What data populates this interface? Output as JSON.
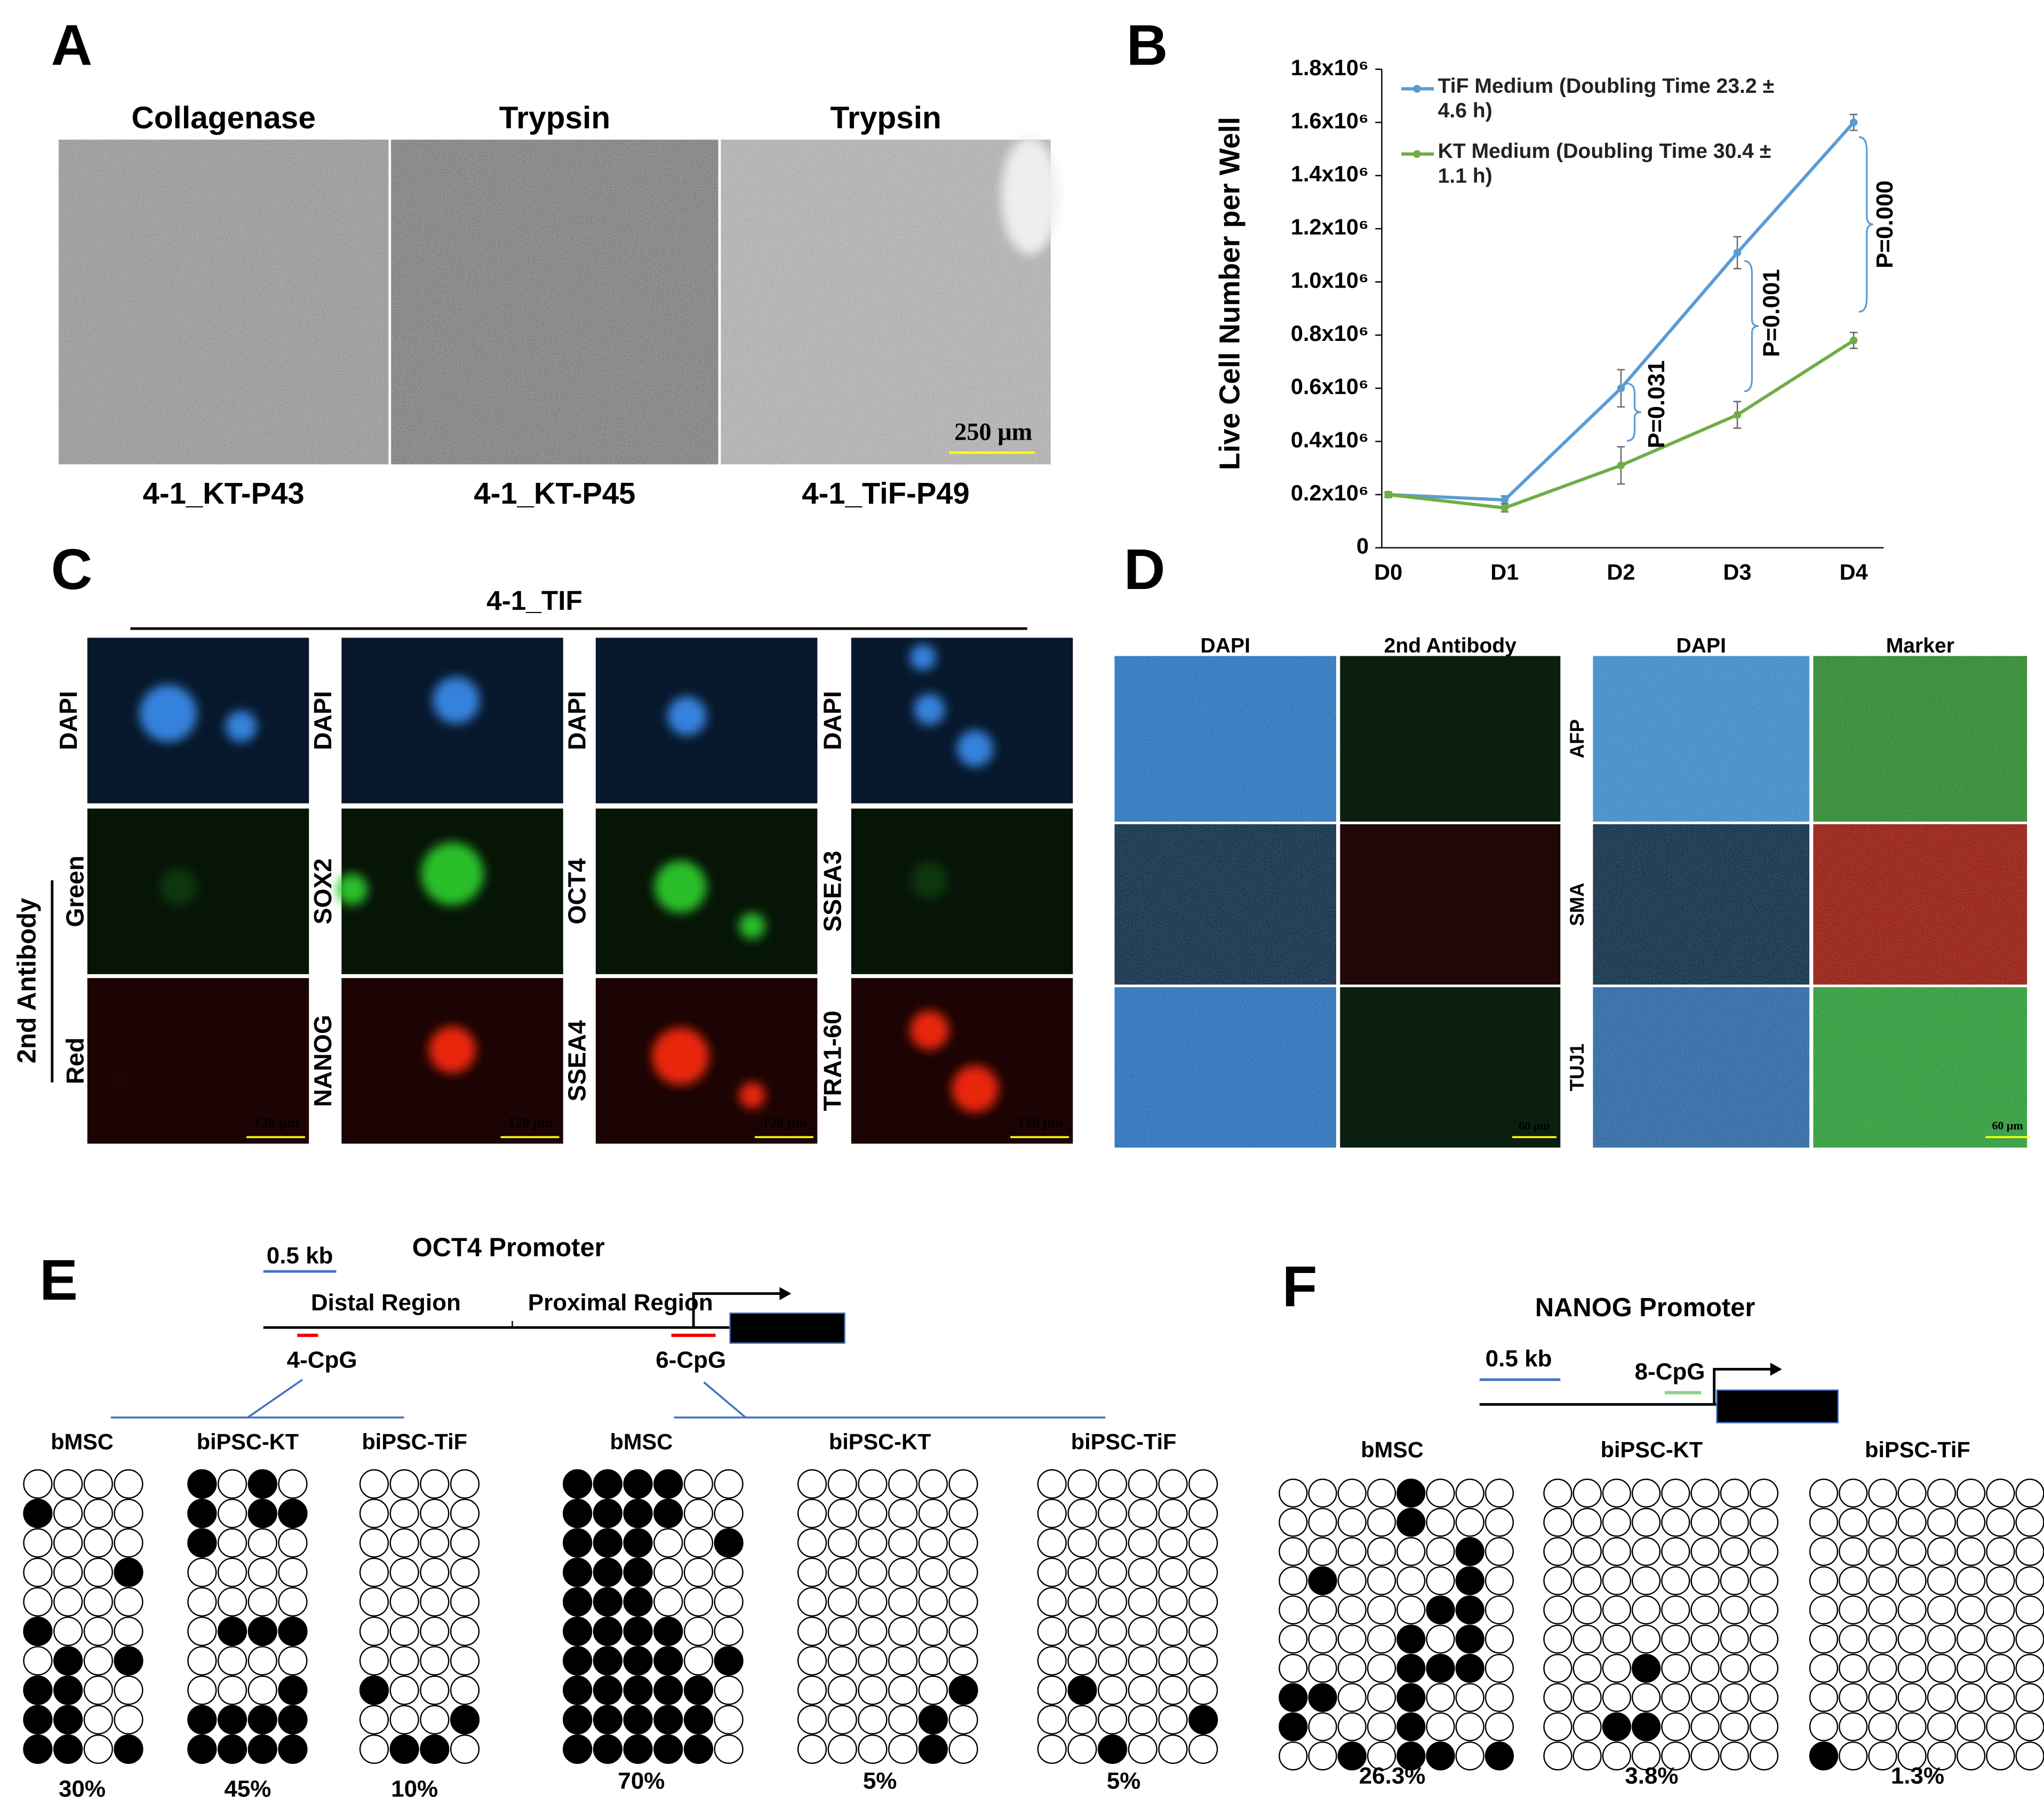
{
  "figure": {
    "panel_letters": [
      "A",
      "B",
      "C",
      "D",
      "E",
      "F"
    ],
    "A": {
      "titles": [
        "Collagenase",
        "Trypsin",
        "Trypsin"
      ],
      "captions": [
        "4-1_KT-P43",
        "4-1_KT-P45",
        "4-1_TiF-P49"
      ],
      "scale_bar": "250 μm"
    },
    "C": {
      "header": "4-1_TIF",
      "group_label": "2nd Antibody",
      "columns": [
        [
          "DAPI",
          "Green",
          "Red"
        ],
        [
          "DAPI",
          "SOX2",
          "NANOG"
        ],
        [
          "DAPI",
          "OCT4",
          "SSEA4"
        ],
        [
          "DAPI",
          "SSEA3",
          "TRA1-60"
        ]
      ],
      "scale_bar": "120 μm"
    },
    "D": {
      "headers": [
        "DAPI",
        "2nd Antibody",
        "DAPI",
        "Marker"
      ],
      "rows": [
        "AFP",
        "SMA",
        "TUJ1"
      ],
      "scale_bar": "60 μm"
    },
    "E": {
      "title": "OCT4 Promoter",
      "scale": "0.5 kb",
      "regions": [
        "Distal Region",
        "Proximal Region"
      ],
      "cpg": [
        "4-CpG",
        "6-CpG"
      ],
      "groups": [
        {
          "label": "bMSC",
          "percent": "30%",
          "rows": [
            [
              0,
              0,
              0,
              0
            ],
            [
              1,
              0,
              0,
              0
            ],
            [
              0,
              0,
              0,
              0
            ],
            [
              0,
              0,
              0,
              1
            ],
            [
              0,
              0,
              0,
              0
            ],
            [
              1,
              0,
              0,
              0
            ],
            [
              0,
              1,
              0,
              1
            ],
            [
              1,
              1,
              0,
              0
            ],
            [
              1,
              1,
              0,
              0
            ],
            [
              1,
              1,
              0,
              1
            ]
          ]
        },
        {
          "label": "biPSC-KT",
          "percent": "45%",
          "rows": [
            [
              1,
              0,
              1,
              0
            ],
            [
              1,
              0,
              1,
              1
            ],
            [
              1,
              0,
              0,
              0
            ],
            [
              0,
              0,
              0,
              0
            ],
            [
              0,
              0,
              0,
              0
            ],
            [
              0,
              1,
              1,
              1
            ],
            [
              0,
              0,
              0,
              0
            ],
            [
              0,
              0,
              0,
              1
            ],
            [
              1,
              1,
              1,
              1
            ],
            [
              1,
              1,
              1,
              1
            ]
          ]
        },
        {
          "label": "biPSC-TiF",
          "percent": "10%",
          "rows": [
            [
              0,
              0,
              0,
              0
            ],
            [
              0,
              0,
              0,
              0
            ],
            [
              0,
              0,
              0,
              0
            ],
            [
              0,
              0,
              0,
              0
            ],
            [
              0,
              0,
              0,
              0
            ],
            [
              0,
              0,
              0,
              0
            ],
            [
              0,
              0,
              0,
              0
            ],
            [
              1,
              0,
              0,
              0
            ],
            [
              0,
              0,
              0,
              1
            ],
            [
              0,
              1,
              1,
              0
            ]
          ]
        },
        {
          "label": "bMSC",
          "percent": "70%",
          "rows": [
            [
              1,
              1,
              1,
              1,
              0,
              0
            ],
            [
              1,
              1,
              1,
              1,
              0,
              0
            ],
            [
              1,
              1,
              1,
              0,
              0,
              1
            ],
            [
              1,
              1,
              1,
              0,
              0,
              0
            ],
            [
              1,
              1,
              1,
              0,
              0,
              0
            ],
            [
              1,
              1,
              1,
              1,
              0,
              0
            ],
            [
              1,
              1,
              1,
              1,
              0,
              1
            ],
            [
              1,
              1,
              1,
              1,
              1,
              0
            ],
            [
              1,
              1,
              1,
              1,
              1,
              0
            ],
            [
              1,
              1,
              1,
              1,
              1,
              0
            ]
          ]
        },
        {
          "label": "biPSC-KT",
          "percent": "5%",
          "rows": [
            [
              0,
              0,
              0,
              0,
              0,
              0
            ],
            [
              0,
              0,
              0,
              0,
              0,
              0
            ],
            [
              0,
              0,
              0,
              0,
              0,
              0
            ],
            [
              0,
              0,
              0,
              0,
              0,
              0
            ],
            [
              0,
              0,
              0,
              0,
              0,
              0
            ],
            [
              0,
              0,
              0,
              0,
              0,
              0
            ],
            [
              0,
              0,
              0,
              0,
              0,
              0
            ],
            [
              0,
              0,
              0,
              0,
              0,
              1
            ],
            [
              0,
              0,
              0,
              0,
              1,
              0
            ],
            [
              0,
              0,
              0,
              0,
              1,
              0
            ]
          ]
        },
        {
          "label": "biPSC-TiF",
          "percent": "5%",
          "rows": [
            [
              0,
              0,
              0,
              0,
              0,
              0
            ],
            [
              0,
              0,
              0,
              0,
              0,
              0
            ],
            [
              0,
              0,
              0,
              0,
              0,
              0
            ],
            [
              0,
              0,
              0,
              0,
              0,
              0
            ],
            [
              0,
              0,
              0,
              0,
              0,
              0
            ],
            [
              0,
              0,
              0,
              0,
              0,
              0
            ],
            [
              0,
              0,
              0,
              0,
              0,
              0
            ],
            [
              0,
              1,
              0,
              0,
              0,
              0
            ],
            [
              0,
              0,
              0,
              0,
              0,
              1
            ],
            [
              0,
              0,
              1,
              0,
              0,
              0
            ]
          ]
        }
      ]
    },
    "F": {
      "title": "NANOG Promoter",
      "scale": "0.5 kb",
      "cpg": "8-CpG",
      "groups": [
        {
          "label": "bMSC",
          "percent": "26.3%",
          "rows": [
            [
              0,
              0,
              0,
              0,
              1,
              0,
              0,
              0
            ],
            [
              0,
              0,
              0,
              0,
              1,
              0,
              0,
              0
            ],
            [
              0,
              0,
              0,
              0,
              0,
              0,
              1,
              0
            ],
            [
              0,
              1,
              0,
              0,
              0,
              0,
              1,
              0
            ],
            [
              0,
              0,
              0,
              0,
              0,
              1,
              1,
              0
            ],
            [
              0,
              0,
              0,
              0,
              1,
              0,
              1,
              0
            ],
            [
              0,
              0,
              0,
              0,
              1,
              1,
              1,
              0
            ],
            [
              1,
              1,
              0,
              0,
              1,
              0,
              0,
              0
            ],
            [
              1,
              0,
              0,
              0,
              1,
              0,
              0,
              0
            ],
            [
              0,
              0,
              1,
              0,
              1,
              1,
              0,
              1
            ]
          ]
        },
        {
          "label": "biPSC-KT",
          "percent": "3.8%",
          "rows": [
            [
              0,
              0,
              0,
              0,
              0,
              0,
              0,
              0
            ],
            [
              0,
              0,
              0,
              0,
              0,
              0,
              0,
              0
            ],
            [
              0,
              0,
              0,
              0,
              0,
              0,
              0,
              0
            ],
            [
              0,
              0,
              0,
              0,
              0,
              0,
              0,
              0
            ],
            [
              0,
              0,
              0,
              0,
              0,
              0,
              0,
              0
            ],
            [
              0,
              0,
              0,
              0,
              0,
              0,
              0,
              0
            ],
            [
              0,
              0,
              0,
              1,
              0,
              0,
              0,
              0
            ],
            [
              0,
              0,
              0,
              0,
              0,
              0,
              0,
              0
            ],
            [
              0,
              0,
              1,
              1,
              0,
              0,
              0,
              0
            ],
            [
              0,
              0,
              0,
              0,
              0,
              0,
              0,
              0
            ]
          ]
        },
        {
          "label": "biPSC-TiF",
          "percent": "1.3%",
          "rows": [
            [
              0,
              0,
              0,
              0,
              0,
              0,
              0,
              0
            ],
            [
              0,
              0,
              0,
              0,
              0,
              0,
              0,
              0
            ],
            [
              0,
              0,
              0,
              0,
              0,
              0,
              0,
              0
            ],
            [
              0,
              0,
              0,
              0,
              0,
              0,
              0,
              0
            ],
            [
              0,
              0,
              0,
              0,
              0,
              0,
              0,
              0
            ],
            [
              0,
              0,
              0,
              0,
              0,
              0,
              0,
              0
            ],
            [
              0,
              0,
              0,
              0,
              0,
              0,
              0,
              0
            ],
            [
              0,
              0,
              0,
              0,
              0,
              0,
              0,
              0
            ],
            [
              0,
              0,
              0,
              0,
              0,
              0,
              0,
              0
            ],
            [
              1,
              0,
              0,
              0,
              0,
              0,
              0,
              0
            ]
          ]
        }
      ]
    }
  },
  "chart_data": {
    "type": "line",
    "y_label": "Live Cell Number per Well",
    "categories": [
      "D0",
      "D1",
      "D2",
      "D3",
      "D4"
    ],
    "ylim": [
      0,
      1800000
    ],
    "yticks": [
      0,
      {
        "value": 200000,
        "label": "0.2x10⁶"
      },
      {
        "value": 400000,
        "label": "0.4x10⁶"
      },
      {
        "value": 600000,
        "label": "0.6x10⁶"
      },
      {
        "value": 800000,
        "label": "0.8x10⁶"
      },
      {
        "value": 1000000,
        "label": "1.0x10⁶"
      },
      {
        "value": 1200000,
        "label": "1.2x10⁶"
      },
      {
        "value": 1400000,
        "label": "1.4x10⁶"
      },
      {
        "value": 1600000,
        "label": "1.6x10⁶"
      },
      {
        "value": 1800000,
        "label": "1.8x10⁶"
      }
    ],
    "series": [
      {
        "name": "TiF Medium (Doubling Time 23.2 ± 4.6 h)",
        "color": "#5b9bd5",
        "values": [
          200000,
          180000,
          600000,
          1110000,
          1600000
        ],
        "errors": [
          10000,
          15000,
          70000,
          60000,
          30000
        ]
      },
      {
        "name": "KT Medium (Doubling Time 30.4 ± 1.1 h)",
        "color": "#70ad47",
        "values": [
          200000,
          150000,
          310000,
          500000,
          780000
        ],
        "errors": [
          10000,
          15000,
          70000,
          50000,
          30000
        ]
      }
    ],
    "annotations": [
      "P=0.031",
      "P=0.001",
      "P=0.000"
    ]
  }
}
